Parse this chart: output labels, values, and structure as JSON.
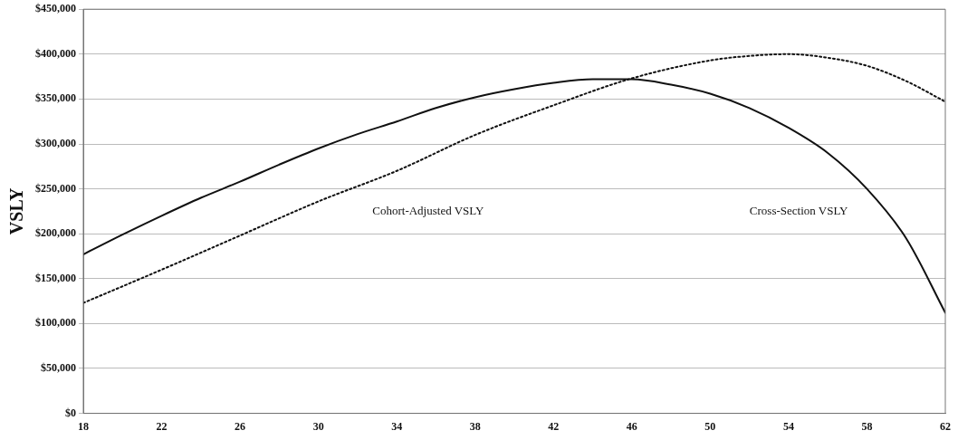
{
  "chart_data": {
    "type": "line",
    "ylabel": "VSLY",
    "xlim": [
      18,
      62
    ],
    "xticks": [
      18,
      22,
      26,
      30,
      34,
      38,
      42,
      46,
      50,
      54,
      58,
      62
    ],
    "ylim": [
      0,
      450000
    ],
    "yticks": [
      {
        "value": 0,
        "label": "$0"
      },
      {
        "value": 50000,
        "label": "$50,000"
      },
      {
        "value": 100000,
        "label": "$100,000"
      },
      {
        "value": 150000,
        "label": "$150,000"
      },
      {
        "value": 200000,
        "label": "$200,000"
      },
      {
        "value": 250000,
        "label": "$250,000"
      },
      {
        "value": 300000,
        "label": "$300,000"
      },
      {
        "value": 350000,
        "label": "$350,000"
      },
      {
        "value": 400000,
        "label": "$400,000"
      },
      {
        "value": 450000,
        "label": "$450,000"
      }
    ],
    "grid": "y",
    "legend": false,
    "marker": "none",
    "series": [
      {
        "color": "#111111",
        "line_style": "solid",
        "x": [
          18,
          20,
          22,
          24,
          26,
          28,
          30,
          32,
          34,
          36,
          38,
          40,
          42,
          44,
          46,
          48,
          50,
          52,
          54,
          56,
          58,
          60,
          62
        ],
        "values": [
          177000,
          199000,
          220000,
          240000,
          258000,
          277000,
          295000,
          311000,
          325000,
          340000,
          352000,
          361000,
          368000,
          372000,
          372000,
          366000,
          356000,
          340000,
          318000,
          290000,
          250000,
          195000,
          112000
        ]
      },
      {
        "color": "#111111",
        "line_style": "dotted",
        "x": [
          18,
          22,
          26,
          30,
          34,
          38,
          42,
          46,
          50,
          52,
          54,
          56,
          58,
          60,
          62
        ],
        "values": [
          123000,
          160000,
          198000,
          236000,
          270000,
          310000,
          343000,
          373000,
          393000,
          398000,
          400000,
          396000,
          387000,
          370000,
          347000
        ]
      }
    ],
    "annotations": [
      "Cohort-Adjusted VSLY",
      "Cross-Section VSLY"
    ]
  }
}
